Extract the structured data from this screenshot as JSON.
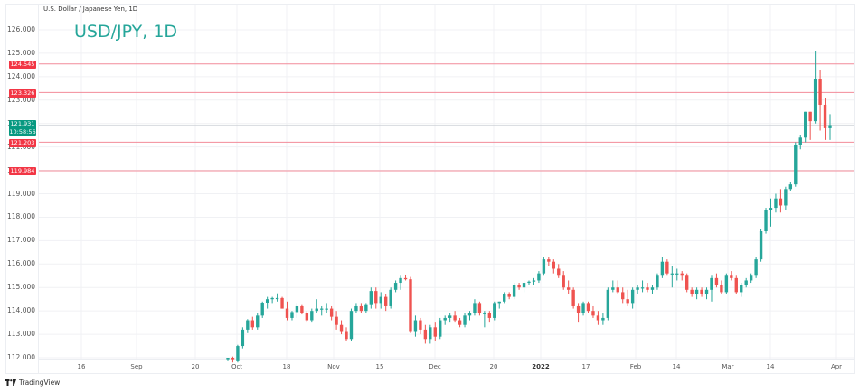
{
  "header": {
    "symbol_description": "U.S. Dollar / Japanese Yen, 1D",
    "title": "USD/JPY, 1D"
  },
  "branding": {
    "logo_text": "TradingView"
  },
  "colors": {
    "up": "#26a69a",
    "down": "#ef5350",
    "hline": "#f28b9a",
    "grid": "#f0f1f4",
    "last_price": "#089981",
    "level_tag": "#f23645"
  },
  "y_axis": {
    "ticks": [
      "126.000",
      "125.000",
      "124.000",
      "123.000",
      "122.000",
      "121.000",
      "120.000",
      "119.000",
      "118.000",
      "117.000",
      "116.000",
      "115.000",
      "114.000",
      "113.000",
      "112.000"
    ]
  },
  "x_axis": {
    "ticks": [
      "16",
      "Sep",
      "20",
      "Oct",
      "18",
      "Nov",
      "15",
      "Dec",
      "20",
      "2022",
      "17",
      "Feb",
      "14",
      "Mar",
      "14",
      "Apr"
    ]
  },
  "price_tags": {
    "level1": "124.545",
    "level2": "123.326",
    "last_price": "121.931",
    "countdown": "10:58:56",
    "level3": "121.203",
    "level4": "119.984"
  },
  "chart_data": {
    "type": "candlestick",
    "title": "USD/JPY, 1D",
    "subtitle": "U.S. Dollar / Japanese Yen, 1D",
    "xlabel": "",
    "ylabel": "",
    "ylim": [
      111.6,
      126.4
    ],
    "grid": true,
    "horizontal_levels": [
      124.545,
      123.326,
      121.203,
      119.984
    ],
    "last_price": 121.931,
    "x_ticks": [
      "16",
      "Sep",
      "20",
      "Oct",
      "18",
      "Nov",
      "15",
      "Dec",
      "20",
      "2022",
      "17",
      "Feb",
      "14",
      "Mar",
      "14",
      "Apr"
    ],
    "y_ticks": [
      126,
      125,
      124,
      123,
      122,
      121,
      120,
      119,
      118,
      117,
      116,
      115,
      114,
      113,
      112
    ],
    "candles": [
      [
        111.9,
        112.0,
        111.85,
        112.0
      ],
      [
        112.0,
        112.05,
        111.8,
        111.9
      ],
      [
        111.85,
        112.55,
        111.8,
        112.5
      ],
      [
        112.5,
        113.3,
        112.4,
        113.2
      ],
      [
        113.2,
        113.65,
        113.05,
        113.6
      ],
      [
        113.6,
        113.75,
        113.2,
        113.3
      ],
      [
        113.3,
        113.9,
        113.2,
        113.8
      ],
      [
        113.8,
        114.4,
        113.7,
        114.35
      ],
      [
        114.35,
        114.6,
        114.1,
        114.5
      ],
      [
        114.5,
        114.6,
        114.3,
        114.55
      ],
      [
        114.55,
        114.75,
        114.4,
        114.55
      ],
      [
        114.55,
        114.6,
        114.1,
        114.1
      ],
      [
        114.1,
        114.4,
        113.6,
        113.7
      ],
      [
        113.7,
        114.0,
        113.6,
        113.95
      ],
      [
        113.95,
        114.3,
        113.7,
        114.2
      ],
      [
        114.2,
        114.25,
        113.85,
        113.9
      ],
      [
        113.9,
        114.0,
        113.5,
        113.6
      ],
      [
        113.6,
        114.1,
        113.5,
        114.0
      ],
      [
        114.0,
        114.5,
        113.9,
        114.1
      ],
      [
        114.1,
        114.2,
        113.8,
        114.1
      ],
      [
        114.1,
        114.3,
        113.9,
        114.1
      ],
      [
        114.1,
        114.2,
        113.6,
        113.75
      ],
      [
        113.75,
        114.0,
        113.2,
        113.4
      ],
      [
        113.4,
        113.6,
        113.0,
        113.1
      ],
      [
        113.1,
        113.3,
        112.7,
        112.8
      ],
      [
        112.8,
        114.1,
        112.7,
        114.0
      ],
      [
        114.0,
        114.3,
        113.9,
        114.2
      ],
      [
        114.2,
        114.3,
        113.9,
        114.0
      ],
      [
        114.0,
        114.3,
        113.9,
        114.25
      ],
      [
        114.25,
        115.0,
        114.1,
        114.85
      ],
      [
        114.85,
        115.0,
        114.1,
        114.3
      ],
      [
        114.3,
        114.8,
        114.1,
        114.6
      ],
      [
        114.6,
        114.7,
        114.0,
        114.2
      ],
      [
        114.2,
        115.0,
        114.1,
        114.9
      ],
      [
        114.9,
        115.3,
        114.8,
        115.2
      ],
      [
        115.2,
        115.5,
        114.9,
        115.4
      ],
      [
        115.4,
        115.55,
        115.3,
        115.35
      ],
      [
        115.35,
        115.45,
        113.05,
        113.1
      ],
      [
        113.1,
        113.8,
        112.9,
        113.6
      ],
      [
        113.6,
        113.7,
        113.0,
        113.2
      ],
      [
        113.2,
        113.4,
        112.6,
        112.8
      ],
      [
        112.8,
        113.4,
        112.6,
        113.3
      ],
      [
        113.3,
        113.5,
        112.7,
        112.9
      ],
      [
        112.9,
        113.7,
        112.8,
        113.6
      ],
      [
        113.6,
        113.8,
        113.4,
        113.7
      ],
      [
        113.7,
        113.9,
        113.5,
        113.8
      ],
      [
        113.8,
        114.0,
        113.5,
        113.6
      ],
      [
        113.6,
        113.7,
        113.3,
        113.4
      ],
      [
        113.4,
        113.9,
        113.3,
        113.8
      ],
      [
        113.8,
        114.0,
        113.6,
        113.9
      ],
      [
        113.9,
        114.5,
        113.8,
        114.3
      ],
      [
        114.3,
        114.4,
        113.8,
        113.9
      ],
      [
        113.9,
        114.0,
        113.3,
        113.9
      ],
      [
        113.9,
        114.0,
        113.5,
        113.7
      ],
      [
        113.7,
        114.4,
        113.6,
        114.3
      ],
      [
        114.3,
        114.4,
        114.1,
        114.4
      ],
      [
        114.4,
        114.8,
        114.3,
        114.7
      ],
      [
        114.7,
        114.8,
        114.5,
        114.6
      ],
      [
        114.6,
        115.2,
        114.5,
        115.1
      ],
      [
        115.1,
        115.2,
        114.9,
        115.0
      ],
      [
        115.0,
        115.3,
        114.8,
        115.2
      ],
      [
        115.2,
        115.3,
        115.1,
        115.25
      ],
      [
        115.25,
        115.4,
        115.1,
        115.3
      ],
      [
        115.3,
        115.7,
        115.2,
        115.6
      ],
      [
        115.6,
        116.3,
        115.5,
        116.2
      ],
      [
        116.2,
        116.3,
        115.9,
        116.1
      ],
      [
        116.1,
        116.2,
        115.6,
        115.8
      ],
      [
        115.8,
        116.0,
        115.4,
        115.5
      ],
      [
        115.5,
        115.7,
        114.9,
        115.0
      ],
      [
        115.0,
        115.3,
        114.7,
        114.9
      ],
      [
        114.9,
        115.0,
        114.1,
        114.2
      ],
      [
        114.2,
        114.3,
        113.5,
        113.9
      ],
      [
        113.9,
        114.4,
        113.8,
        114.3
      ],
      [
        114.3,
        114.4,
        113.9,
        114.0
      ],
      [
        114.0,
        114.2,
        113.7,
        113.8
      ],
      [
        113.8,
        114.0,
        113.4,
        113.6
      ],
      [
        113.6,
        113.9,
        113.4,
        113.7
      ],
      [
        113.7,
        115.0,
        113.6,
        114.9
      ],
      [
        114.9,
        115.3,
        114.8,
        115.0
      ],
      [
        115.0,
        115.3,
        114.7,
        114.8
      ],
      [
        114.8,
        115.0,
        114.3,
        114.5
      ],
      [
        114.5,
        114.9,
        114.2,
        114.3
      ],
      [
        114.3,
        115.0,
        114.1,
        114.9
      ],
      [
        114.9,
        115.1,
        114.7,
        115.0
      ],
      [
        115.0,
        115.3,
        114.8,
        115.0
      ],
      [
        115.0,
        115.2,
        114.8,
        114.9
      ],
      [
        114.9,
        115.1,
        114.7,
        115.0
      ],
      [
        115.0,
        115.6,
        114.9,
        115.5
      ],
      [
        115.5,
        116.3,
        115.4,
        116.1
      ],
      [
        116.1,
        116.2,
        115.5,
        115.6
      ],
      [
        115.6,
        115.9,
        115.0,
        115.6
      ],
      [
        115.6,
        115.8,
        115.3,
        115.6
      ],
      [
        115.6,
        115.7,
        115.3,
        115.5
      ],
      [
        115.5,
        115.6,
        114.8,
        114.9
      ],
      [
        114.9,
        115.0,
        114.6,
        114.7
      ],
      [
        114.7,
        115.0,
        114.5,
        114.9
      ],
      [
        114.9,
        115.0,
        114.6,
        114.7
      ],
      [
        114.7,
        115.0,
        114.5,
        114.9
      ],
      [
        114.9,
        115.5,
        114.4,
        115.4
      ],
      [
        115.4,
        115.6,
        115.0,
        115.1
      ],
      [
        115.1,
        115.3,
        114.7,
        114.8
      ],
      [
        114.8,
        115.6,
        114.7,
        115.5
      ],
      [
        115.5,
        115.7,
        115.3,
        115.4
      ],
      [
        115.4,
        115.5,
        114.7,
        114.8
      ],
      [
        114.8,
        115.2,
        114.6,
        115.1
      ],
      [
        115.1,
        115.4,
        115.0,
        115.3
      ],
      [
        115.3,
        115.6,
        115.2,
        115.5
      ],
      [
        115.5,
        116.3,
        115.4,
        116.2
      ],
      [
        116.2,
        117.5,
        116.1,
        117.4
      ],
      [
        117.4,
        118.4,
        117.3,
        118.3
      ],
      [
        118.3,
        118.8,
        117.6,
        118.4
      ],
      [
        118.4,
        119.0,
        118.2,
        118.8
      ],
      [
        118.8,
        119.2,
        118.2,
        118.5
      ],
      [
        118.5,
        119.3,
        118.3,
        119.2
      ],
      [
        119.2,
        119.5,
        119.1,
        119.4
      ],
      [
        119.4,
        121.2,
        119.3,
        121.1
      ],
      [
        121.1,
        121.5,
        120.9,
        121.4
      ],
      [
        121.4,
        122.5,
        121.2,
        122.5
      ],
      [
        122.5,
        122.5,
        121.3,
        122.1
      ],
      [
        122.1,
        125.1,
        122.0,
        123.9
      ],
      [
        123.9,
        124.3,
        121.7,
        122.8
      ],
      [
        122.8,
        123.1,
        121.3,
        121.8
      ],
      [
        121.8,
        122.4,
        121.3,
        121.931
      ]
    ]
  }
}
